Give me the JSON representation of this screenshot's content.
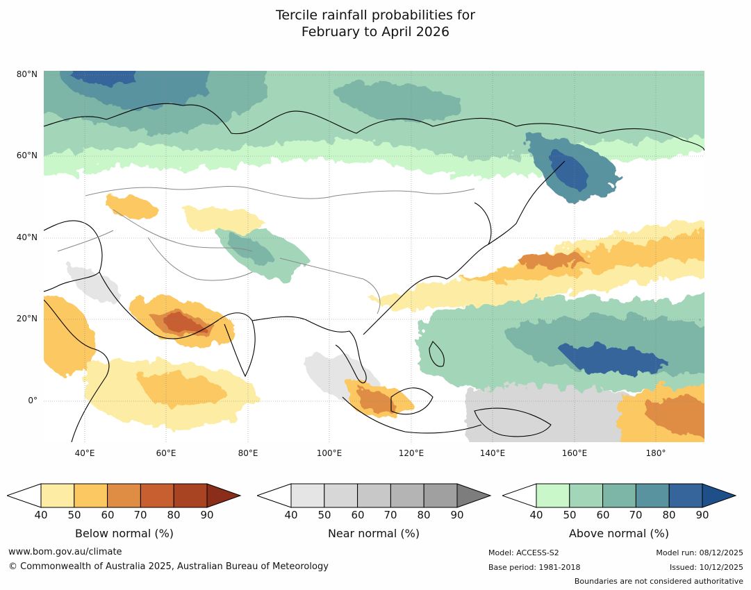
{
  "title": {
    "line1": "Tercile rainfall probabilities for",
    "line2": "February to April 2026"
  },
  "axes": {
    "lat_labels": [
      "80°N",
      "60°N",
      "40°N",
      "20°N",
      "0°"
    ],
    "lon_labels": [
      "40°E",
      "60°E",
      "80°E",
      "100°E",
      "120°E",
      "140°E",
      "160°E",
      "180°"
    ]
  },
  "colorbars": [
    {
      "title": "Below normal (%)",
      "ticks": [
        "40",
        "50",
        "60",
        "70",
        "80",
        "90"
      ],
      "colors": [
        "#ffffff",
        "#fdeda4",
        "#fbc862",
        "#df8d45",
        "#c85f31",
        "#a94423",
        "#8a2e19"
      ]
    },
    {
      "title": "Near normal (%)",
      "ticks": [
        "40",
        "50",
        "60",
        "70",
        "80",
        "90"
      ],
      "colors": [
        "#ffffff",
        "#e5e5e5",
        "#d7d7d7",
        "#c8c8c8",
        "#b4b4b4",
        "#a0a0a0",
        "#7d7d7d"
      ]
    },
    {
      "title": "Above normal (%)",
      "ticks": [
        "40",
        "50",
        "60",
        "70",
        "80",
        "90"
      ],
      "colors": [
        "#ffffff",
        "#c9f7c9",
        "#a3d6b9",
        "#7db5a6",
        "#5a93a0",
        "#35659a",
        "#1e4f88"
      ]
    }
  ],
  "footer": {
    "website": "www.bom.gov.au/climate",
    "copyright": "© Commonwealth of Australia 2025, Australian Bureau of Meteorology",
    "model": "Model: ACCESS-S2",
    "base_period": "Base period: 1981-2018",
    "model_run": "Model run: 08/12/2025",
    "issued": "Issued: 10/12/2025",
    "disclaimer": "Boundaries are not considered authoritative"
  }
}
